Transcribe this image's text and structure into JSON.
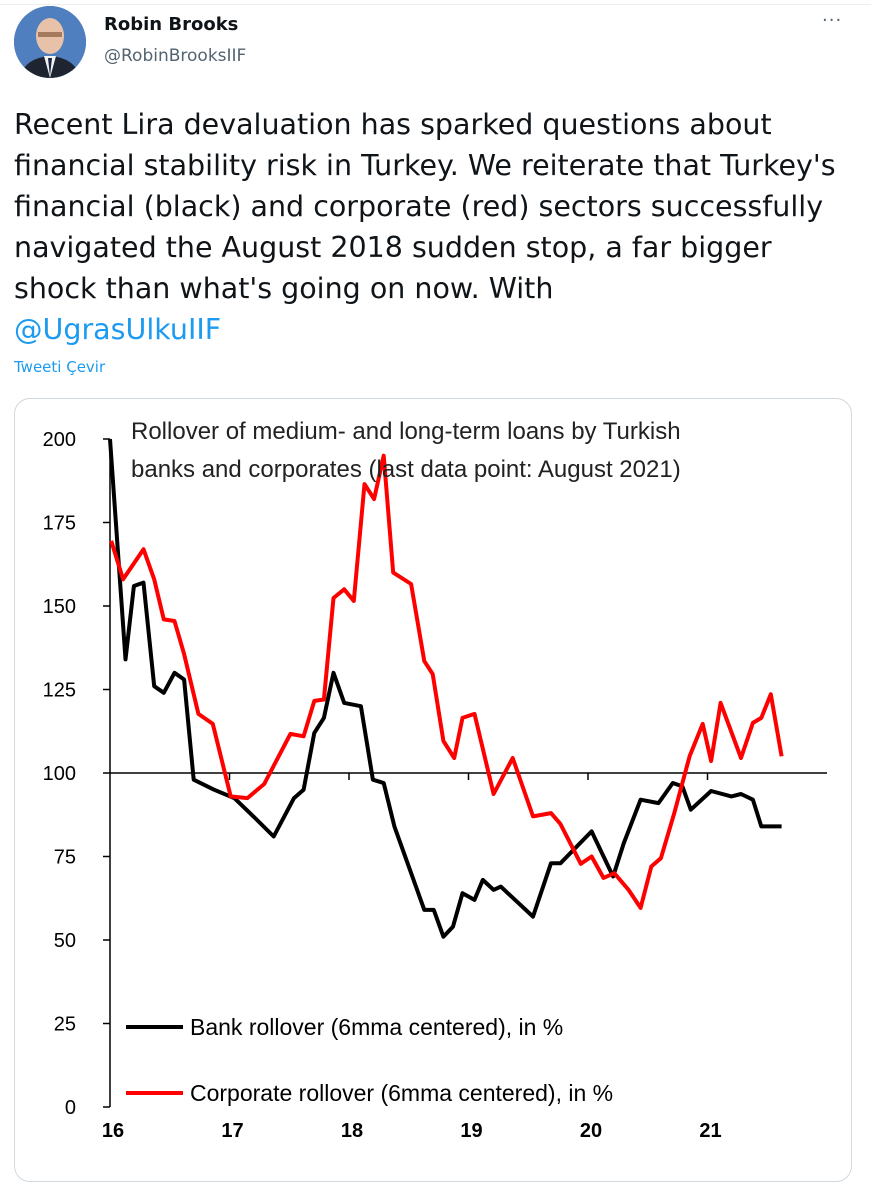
{
  "tweet": {
    "author_name": "Robin Brooks",
    "author_handle": "@RobinBrooksIIF",
    "more_icon": "ellipsis-icon",
    "text": "Recent Lira devaluation has sparked questions about financial stability risk in Turkey. We reiterate that Turkey's financial (black) and corporate (red) sectors successfully navigated the August 2018 sudden stop, a far bigger shock than what's going on now. With",
    "mention": "@UgrasUlkuIIF",
    "translate_label": "Tweeti Çevir",
    "link_color": "#1d9bf0"
  },
  "chart_data": {
    "type": "line",
    "title_lines": [
      "Rollover of medium- and long-term loans by Turkish",
      "banks and corporates (last data point: August 2021)"
    ],
    "xlabel": "",
    "ylabel": "",
    "xlim": [
      2016,
      2022
    ],
    "ylim": [
      0,
      200
    ],
    "x_ticks": [
      {
        "value": 2016,
        "label": "16"
      },
      {
        "value": 2017,
        "label": "17"
      },
      {
        "value": 2018,
        "label": "18"
      },
      {
        "value": 2019,
        "label": "19"
      },
      {
        "value": 2020,
        "label": "20"
      },
      {
        "value": 2021,
        "label": "21"
      }
    ],
    "y_ticks": [
      0,
      25,
      50,
      75,
      100,
      125,
      150,
      175,
      200
    ],
    "x_axis_crosses_at": 100,
    "grid": false,
    "legend_placement": "bottom-left",
    "series": [
      {
        "name": "Bank rollover (6mma centered), in %",
        "color": "#000000",
        "points": [
          [
            2016.0,
            200
          ],
          [
            2016.13,
            134
          ],
          [
            2016.2,
            156
          ],
          [
            2016.28,
            157
          ],
          [
            2016.37,
            126
          ],
          [
            2016.45,
            124
          ],
          [
            2016.54,
            130
          ],
          [
            2016.62,
            128
          ],
          [
            2016.7,
            98
          ],
          [
            2016.87,
            95
          ],
          [
            2017.04,
            92.5
          ],
          [
            2017.2,
            87
          ],
          [
            2017.37,
            81
          ],
          [
            2017.54,
            92.5
          ],
          [
            2017.62,
            95
          ],
          [
            2017.71,
            112
          ],
          [
            2017.79,
            116.5
          ],
          [
            2017.87,
            130
          ],
          [
            2017.96,
            121
          ],
          [
            2018.1,
            120
          ],
          [
            2018.2,
            98
          ],
          [
            2018.29,
            97
          ],
          [
            2018.38,
            84
          ],
          [
            2018.63,
            59
          ],
          [
            2018.71,
            59
          ],
          [
            2018.79,
            51
          ],
          [
            2018.87,
            54
          ],
          [
            2018.95,
            64
          ],
          [
            2019.05,
            62
          ],
          [
            2019.12,
            68
          ],
          [
            2019.21,
            65
          ],
          [
            2019.27,
            66
          ],
          [
            2019.54,
            57
          ],
          [
            2019.69,
            73
          ],
          [
            2019.77,
            73
          ],
          [
            2020.03,
            82.5
          ],
          [
            2020.21,
            69
          ],
          [
            2020.3,
            79
          ],
          [
            2020.44,
            92
          ],
          [
            2020.59,
            91
          ],
          [
            2020.71,
            97
          ],
          [
            2020.79,
            96
          ],
          [
            2020.86,
            89
          ],
          [
            2021.03,
            94.6
          ],
          [
            2021.2,
            93
          ],
          [
            2021.28,
            93.7
          ],
          [
            2021.38,
            92
          ],
          [
            2021.45,
            84
          ],
          [
            2021.62,
            84
          ]
        ]
      },
      {
        "name": "Corporate rollover (6mma centered), in %",
        "color": "#ff0000",
        "points": [
          [
            2016.01,
            169.5
          ],
          [
            2016.11,
            158
          ],
          [
            2016.28,
            167
          ],
          [
            2016.37,
            158
          ],
          [
            2016.45,
            146
          ],
          [
            2016.54,
            145.5
          ],
          [
            2016.62,
            135.6
          ],
          [
            2016.74,
            117.7
          ],
          [
            2016.86,
            114.7
          ],
          [
            2017.01,
            93
          ],
          [
            2017.15,
            92.5
          ],
          [
            2017.29,
            96.7
          ],
          [
            2017.51,
            111.7
          ],
          [
            2017.62,
            111
          ],
          [
            2017.71,
            121.6
          ],
          [
            2017.79,
            122
          ],
          [
            2017.87,
            152.4
          ],
          [
            2017.96,
            155
          ],
          [
            2018.04,
            151.5
          ],
          [
            2018.13,
            186.5
          ],
          [
            2018.21,
            182
          ],
          [
            2018.29,
            195
          ],
          [
            2018.37,
            160
          ],
          [
            2018.52,
            156.6
          ],
          [
            2018.63,
            133.5
          ],
          [
            2018.7,
            129.6
          ],
          [
            2018.79,
            109.6
          ],
          [
            2018.88,
            104.5
          ],
          [
            2018.95,
            116.5
          ],
          [
            2019.05,
            117.7
          ],
          [
            2019.21,
            93.7
          ],
          [
            2019.37,
            104.5
          ],
          [
            2019.54,
            87
          ],
          [
            2019.69,
            88
          ],
          [
            2019.77,
            84.7
          ],
          [
            2019.94,
            72.8
          ],
          [
            2020.03,
            75
          ],
          [
            2020.13,
            68.6
          ],
          [
            2020.22,
            70
          ],
          [
            2020.34,
            65
          ],
          [
            2020.44,
            59.6
          ],
          [
            2020.53,
            72
          ],
          [
            2020.61,
            74.5
          ],
          [
            2020.72,
            87.7
          ],
          [
            2020.85,
            105
          ],
          [
            2020.96,
            114.7
          ],
          [
            2021.03,
            103.6
          ],
          [
            2021.11,
            121
          ],
          [
            2021.28,
            104.5
          ],
          [
            2021.38,
            115
          ],
          [
            2021.45,
            116.5
          ],
          [
            2021.53,
            123.6
          ],
          [
            2021.62,
            105
          ]
        ]
      }
    ]
  }
}
